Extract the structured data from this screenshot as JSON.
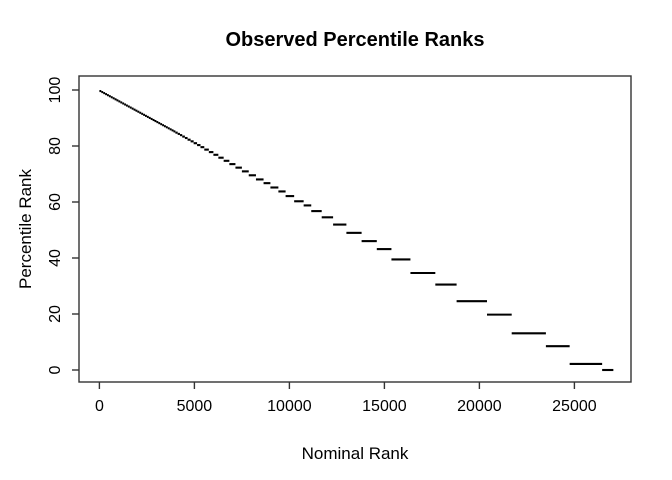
{
  "figure": {
    "background": "#ffffff",
    "line_color": "#000000",
    "box_color": "#333333"
  },
  "chart_data": {
    "type": "line",
    "subtype": "step-segments",
    "title": "Observed Percentile Ranks",
    "xlabel": "Nominal Rank",
    "ylabel": "Percentile Rank",
    "xlim": [
      0,
      27050
    ],
    "ylim": [
      0,
      100
    ],
    "x_ticks": [
      0,
      5000,
      10000,
      15000,
      20000,
      25000
    ],
    "y_ticks": [
      0,
      20,
      40,
      60,
      80,
      100
    ],
    "grid": false,
    "legend": false,
    "n_total": 27050,
    "segments": [
      [
        0,
        100,
        99.63
      ],
      [
        100,
        200,
        99.26
      ],
      [
        200,
        300,
        98.89
      ],
      [
        300,
        400,
        98.52
      ],
      [
        400,
        500,
        98.15
      ],
      [
        500,
        600,
        97.78
      ],
      [
        600,
        700,
        97.41
      ],
      [
        700,
        800,
        97.04
      ],
      [
        800,
        900,
        96.67
      ],
      [
        900,
        1000,
        96.3
      ],
      [
        1000,
        1100,
        95.93
      ],
      [
        1100,
        1200,
        95.56
      ],
      [
        1200,
        1300,
        95.19
      ],
      [
        1300,
        1400,
        94.82
      ],
      [
        1400,
        1500,
        94.45
      ],
      [
        1500,
        1600,
        94.09
      ],
      [
        1600,
        1700,
        93.72
      ],
      [
        1700,
        1800,
        93.35
      ],
      [
        1800,
        1900,
        92.98
      ],
      [
        1900,
        2000,
        92.61
      ],
      [
        2000,
        2100,
        92.24
      ],
      [
        2100,
        2200,
        91.87
      ],
      [
        2200,
        2300,
        91.5
      ],
      [
        2300,
        2400,
        91.13
      ],
      [
        2400,
        2500,
        90.76
      ],
      [
        2500,
        2600,
        90.39
      ],
      [
        2600,
        2700,
        90.02
      ],
      [
        2700,
        2800,
        89.65
      ],
      [
        2800,
        2900,
        89.28
      ],
      [
        2900,
        3000,
        88.91
      ],
      [
        3000,
        3100,
        88.54
      ],
      [
        3100,
        3200,
        88.17
      ],
      [
        3200,
        3300,
        87.8
      ],
      [
        3300,
        3400,
        87.43
      ],
      [
        3400,
        3500,
        87.06
      ],
      [
        3500,
        3600,
        86.69
      ],
      [
        3600,
        3700,
        86.32
      ],
      [
        3700,
        3800,
        85.95
      ],
      [
        3800,
        3900,
        85.58
      ],
      [
        3900,
        4000,
        85.21
      ],
      [
        4000,
        4120,
        84.77
      ],
      [
        4120,
        4240,
        84.32
      ],
      [
        4240,
        4360,
        83.88
      ],
      [
        4360,
        4500,
        83.36
      ],
      [
        4500,
        4640,
        82.85
      ],
      [
        4640,
        4800,
        82.25
      ],
      [
        4800,
        4960,
        81.66
      ],
      [
        4960,
        5140,
        81.0
      ],
      [
        5140,
        5320,
        80.33
      ],
      [
        5320,
        5520,
        79.59
      ],
      [
        5520,
        5760,
        78.71
      ],
      [
        5760,
        6000,
        77.82
      ],
      [
        6000,
        6260,
        76.86
      ],
      [
        6260,
        6540,
        75.82
      ],
      [
        6540,
        6840,
        74.71
      ],
      [
        6840,
        7160,
        73.53
      ],
      [
        7160,
        7500,
        72.27
      ],
      [
        7500,
        7860,
        70.94
      ],
      [
        7860,
        8240,
        69.54
      ],
      [
        8240,
        8640,
        68.06
      ],
      [
        8640,
        9000,
        66.73
      ],
      [
        9000,
        9420,
        65.18
      ],
      [
        9420,
        9800,
        63.77
      ],
      [
        9800,
        10250,
        62.11
      ],
      [
        10250,
        10750,
        60.26
      ],
      [
        10750,
        11150,
        58.78
      ],
      [
        11150,
        11700,
        56.75
      ],
      [
        11700,
        12300,
        54.53
      ],
      [
        12300,
        13000,
        51.94
      ],
      [
        13000,
        13800,
        48.98
      ],
      [
        13800,
        14600,
        46.03
      ],
      [
        14600,
        15370,
        43.18
      ],
      [
        15370,
        16370,
        39.48
      ],
      [
        16370,
        17680,
        34.64
      ],
      [
        17680,
        18800,
        30.5
      ],
      [
        18800,
        20400,
        24.58
      ],
      [
        20400,
        21700,
        19.78
      ],
      [
        21700,
        23500,
        13.12
      ],
      [
        23500,
        24750,
        8.5
      ],
      [
        24750,
        26460,
        2.18
      ],
      [
        26460,
        27050,
        0.0
      ]
    ]
  }
}
